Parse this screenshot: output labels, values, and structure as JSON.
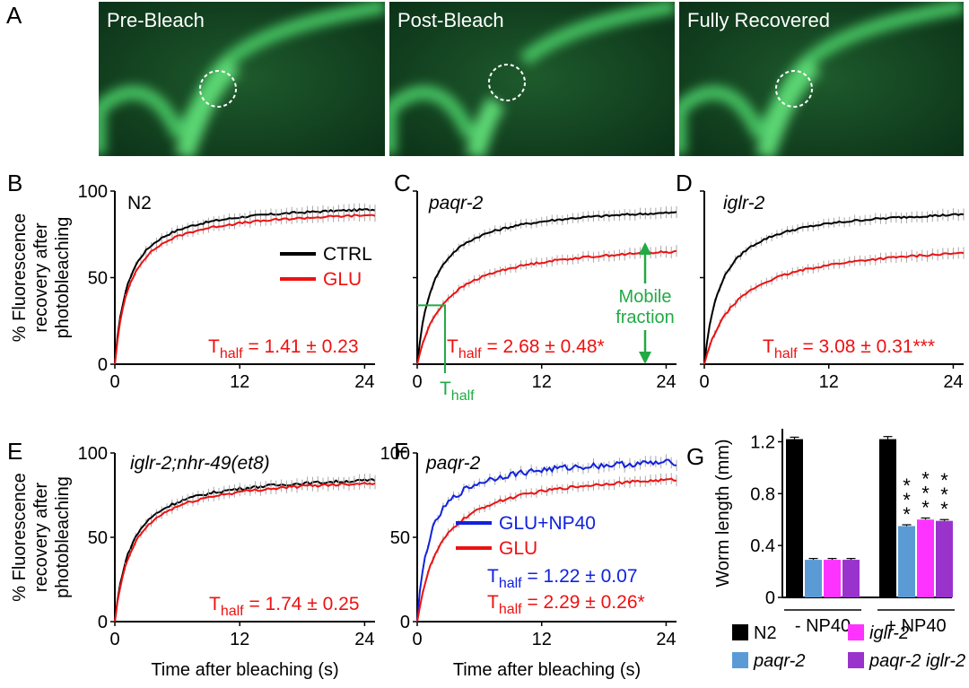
{
  "panel_letters": [
    "A",
    "B",
    "C",
    "D",
    "E",
    "F",
    "G"
  ],
  "micrographs": [
    {
      "label": "Pre-Bleach",
      "bleached": false
    },
    {
      "label": "Post-Bleach",
      "bleached": true
    },
    {
      "label": "Fully Recovered",
      "bleached": false
    }
  ],
  "shared": {
    "ylabel_lines": [
      "% Fluorescence",
      "recovery after",
      "photobleaching"
    ],
    "xlabel": "Time after bleaching (s)",
    "x_ticks": [
      0,
      12,
      24
    ],
    "y_ticks": [
      0,
      50,
      100
    ],
    "half_base": "T",
    "half_sub": "half"
  },
  "chart_data": [
    {
      "panel": "B",
      "type": "line",
      "title": "N2",
      "italic_title": false,
      "xlim": [
        0,
        25
      ],
      "ylim": [
        0,
        100
      ],
      "legend": [
        {
          "name": "CTRL",
          "color": "#000000"
        },
        {
          "name": "GLU",
          "color": "#ee1111"
        }
      ],
      "series": [
        {
          "name": "CTRL",
          "color": "#000000",
          "plateau": 94,
          "t_half": 1.3,
          "noise": 0.6
        },
        {
          "name": "GLU",
          "color": "#ee1111",
          "plateau": 91,
          "t_half": 1.41,
          "noise": 0.6
        }
      ],
      "annotations": [
        {
          "value": " = 1.41 ± 0.23",
          "color": "#ee1111"
        }
      ]
    },
    {
      "panel": "C",
      "type": "line",
      "title": "paqr-2",
      "italic_title": true,
      "xlim": [
        0,
        25
      ],
      "ylim": [
        0,
        100
      ],
      "series": [
        {
          "name": "",
          "color": "#000000",
          "plateau": 93,
          "t_half": 1.55,
          "noise": 0.6
        },
        {
          "name": "",
          "color": "#ee1111",
          "plateau": 72,
          "t_half": 2.68,
          "noise": 0.6
        }
      ],
      "annotations": [
        {
          "value": " = 2.68 ± 0.48*",
          "color": "#ee1111"
        }
      ],
      "markers": {
        "mobile_fraction_lines": [
          "Mobile",
          "fraction"
        ],
        "t_half_value": 2.68,
        "half_level": 34,
        "color": "#22aa44"
      }
    },
    {
      "panel": "D",
      "type": "line",
      "title": "iglr-2",
      "italic_title": true,
      "xlim": [
        0,
        25
      ],
      "ylim": [
        0,
        100
      ],
      "series": [
        {
          "name": "",
          "color": "#000000",
          "plateau": 92,
          "t_half": 1.6,
          "noise": 0.6
        },
        {
          "name": "",
          "color": "#ee1111",
          "plateau": 72,
          "t_half": 3.08,
          "noise": 0.6
        }
      ],
      "annotations": [
        {
          "value": " = 3.08 ± 0.31***",
          "color": "#ee1111"
        }
      ]
    },
    {
      "panel": "E",
      "type": "line",
      "title": "iglr-2;nhr-49(et8)",
      "italic_title": true,
      "xlim": [
        0,
        25
      ],
      "ylim": [
        0,
        100
      ],
      "series": [
        {
          "name": "",
          "color": "#000000",
          "plateau": 89,
          "t_half": 1.55,
          "noise": 0.8
        },
        {
          "name": "",
          "color": "#ee1111",
          "plateau": 88,
          "t_half": 1.74,
          "noise": 0.8
        }
      ],
      "annotations": [
        {
          "value": " = 1.74 ± 0.25",
          "color": "#ee1111"
        }
      ]
    },
    {
      "panel": "F",
      "type": "line",
      "title": "paqr-2",
      "italic_title": true,
      "xlim": [
        0,
        25
      ],
      "ylim": [
        0,
        100
      ],
      "legend": [
        {
          "name": "GLU+NP40",
          "color": "#1122dd"
        },
        {
          "name": "GLU",
          "color": "#ee1111"
        }
      ],
      "series": [
        {
          "name": "GLU+NP40",
          "color": "#1122dd",
          "plateau": 99,
          "t_half": 1.22,
          "noise": 1.8
        },
        {
          "name": "GLU",
          "color": "#ee1111",
          "plateau": 92,
          "t_half": 2.29,
          "noise": 0.8
        }
      ],
      "annotations": [
        {
          "value": " = 1.22 ± 0.07",
          "color": "#1122dd"
        },
        {
          "value": " = 2.29 ± 0.26*",
          "color": "#ee1111"
        }
      ]
    },
    {
      "panel": "G",
      "type": "bar",
      "ylabel": "Worm length (mm)",
      "ylim": [
        0,
        1.3
      ],
      "y_ticks": [
        "0",
        "0.4",
        "0.8",
        "1.2"
      ],
      "y_tick_values": [
        0,
        0.4,
        0.8,
        1.2
      ],
      "groups": [
        "- NP40",
        "+ NP40"
      ],
      "series": [
        {
          "name": "N2",
          "color": "#000000",
          "italic": false,
          "values": [
            1.22,
            1.22
          ],
          "errors": [
            0.015,
            0.02
          ]
        },
        {
          "name": "paqr-2",
          "color": "#5b9bd5",
          "italic": true,
          "values": [
            0.29,
            0.55
          ],
          "errors": [
            0.01,
            0.01
          ]
        },
        {
          "name": "iglr-2",
          "color": "#ff33ff",
          "italic": true,
          "values": [
            0.29,
            0.6
          ],
          "errors": [
            0.01,
            0.012
          ]
        },
        {
          "name": "paqr-2 iglr-2",
          "color": "#9933cc",
          "italic": true,
          "values": [
            0.29,
            0.59
          ],
          "errors": [
            0.01,
            0.01
          ]
        }
      ],
      "significance": [
        "",
        "*\n*\n*",
        "*\n*\n*",
        "*\n*\n*"
      ]
    }
  ]
}
